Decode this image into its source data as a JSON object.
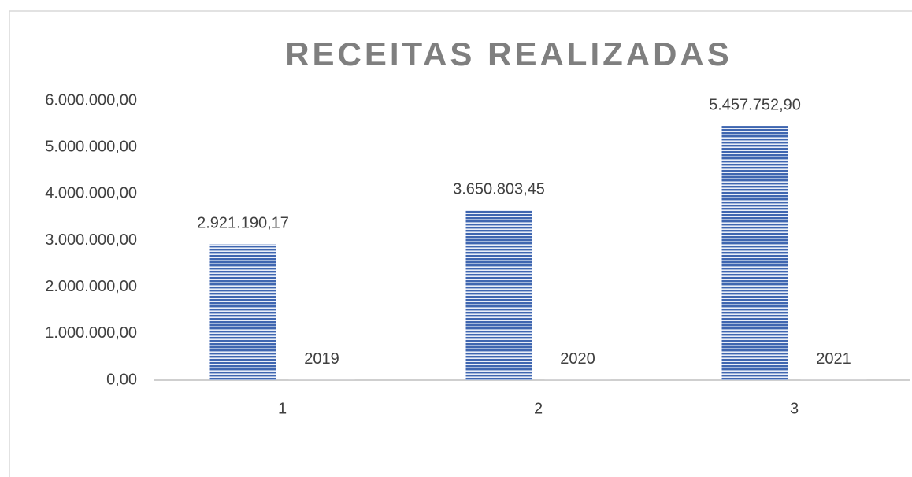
{
  "chart_data": {
    "type": "bar",
    "title": "RECEITAS REALIZADAS",
    "categories": [
      "1",
      "2",
      "3"
    ],
    "series": [
      {
        "color": "#4472c4",
        "values": [
          2921190.17,
          3650803.45,
          5457752.9
        ],
        "value_labels": [
          "2.921.190,17",
          "3.650.803,45",
          "5.457.752,90"
        ]
      },
      {
        "color": "#4472c4",
        "values": [
          2019,
          2020,
          2021
        ]
      }
    ],
    "ylim": [
      0,
      6000000
    ],
    "yticks": [
      {
        "value": 0,
        "label": "0,00"
      },
      {
        "value": 1000000,
        "label": "1.000.000,00"
      },
      {
        "value": 2000000,
        "label": "2.000.000,00"
      },
      {
        "value": 3000000,
        "label": "3.000.000,00"
      },
      {
        "value": 4000000,
        "label": "4.000.000,00"
      },
      {
        "value": 5000000,
        "label": "5.000.000,00"
      },
      {
        "value": 6000000,
        "label": "6.000.000,00"
      }
    ],
    "grid": false
  }
}
